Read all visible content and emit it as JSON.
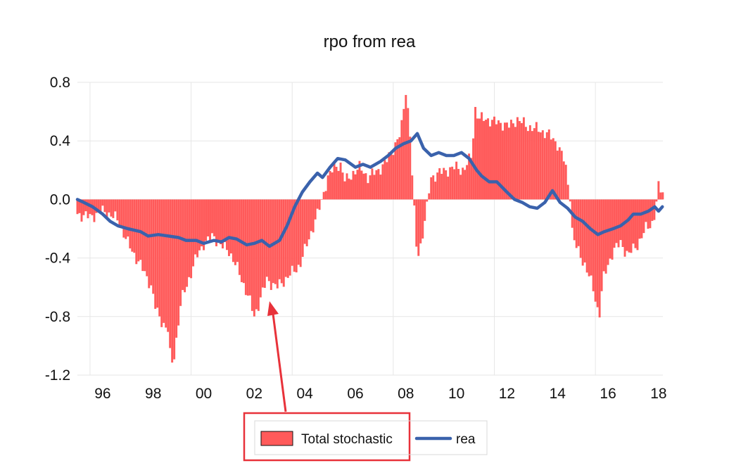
{
  "chart_data": {
    "type": "bar",
    "title": "rpo from rea",
    "xlabel": "",
    "ylabel": "",
    "ylim": [
      -1.2,
      0.8
    ],
    "yticks": [
      "0.8",
      "0.4",
      "0.0",
      "-0.4",
      "-0.8",
      "-1.2"
    ],
    "ytick_values": [
      0.8,
      0.4,
      0.0,
      -0.4,
      -0.8,
      -1.2
    ],
    "x_range": [
      1995.0,
      2018.17
    ],
    "xticks": [
      "96",
      "98",
      "00",
      "02",
      "04",
      "06",
      "08",
      "10",
      "12",
      "14",
      "16",
      "18"
    ],
    "xtick_values": [
      1996,
      1998,
      2000,
      2002,
      2004,
      2006,
      2008,
      2010,
      2012,
      2014,
      2016,
      2018
    ],
    "x_gridlines": [
      1995.5,
      1999.5,
      2003.5,
      2007.5,
      2011.5,
      2015.5
    ],
    "grid": true,
    "legend_position": "bottom",
    "series": [
      {
        "name": "Total stochastic",
        "kind": "bar",
        "color": "#ff5a5a",
        "x": [
          1995.0,
          1995.5,
          1996.0,
          1996.25,
          1996.6,
          1997.0,
          1997.5,
          1997.9,
          1998.1,
          1998.4,
          1998.6,
          1998.7,
          1998.85,
          1999.1,
          1999.4,
          1999.7,
          2000.0,
          2000.4,
          2000.7,
          2001.0,
          2001.4,
          2001.8,
          2002.0,
          2002.2,
          2002.5,
          2002.9,
          2003.2,
          2003.5,
          2003.8,
          2004.0,
          2004.3,
          2004.6,
          2004.9,
          2005.1,
          2005.4,
          2005.6,
          2005.9,
          2006.2,
          2006.5,
          2006.9,
          2007.2,
          2007.5,
          2007.8,
          2008.0,
          2008.15,
          2008.3,
          2008.45,
          2008.6,
          2008.8,
          2009.0,
          2009.3,
          2009.6,
          2010.0,
          2010.3,
          2010.6,
          2010.75,
          2010.9,
          2011.2,
          2011.5,
          2011.8,
          2012.1,
          2012.4,
          2012.8,
          2013.2,
          2013.6,
          2014.0,
          2014.3,
          2014.5,
          2014.6,
          2014.8,
          2015.1,
          2015.4,
          2015.65,
          2015.8,
          2016.0,
          2016.2,
          2016.5,
          2016.8,
          2017.2,
          2017.5,
          2017.8,
          2018.0,
          2018.15
        ],
        "values": [
          -0.1,
          -0.12,
          -0.08,
          -0.1,
          -0.14,
          -0.3,
          -0.45,
          -0.58,
          -0.75,
          -0.85,
          -0.9,
          -1.14,
          -1.05,
          -0.7,
          -0.55,
          -0.4,
          -0.3,
          -0.25,
          -0.32,
          -0.35,
          -0.5,
          -0.68,
          -0.8,
          -0.7,
          -0.55,
          -0.6,
          -0.55,
          -0.5,
          -0.45,
          -0.35,
          -0.2,
          -0.05,
          0.15,
          0.2,
          0.25,
          0.12,
          0.18,
          0.22,
          0.15,
          0.2,
          0.25,
          0.35,
          0.45,
          0.75,
          0.5,
          0.0,
          -0.4,
          -0.3,
          -0.1,
          0.15,
          0.18,
          0.2,
          0.22,
          0.2,
          0.3,
          0.62,
          0.55,
          0.55,
          0.53,
          0.52,
          0.5,
          0.55,
          0.5,
          0.48,
          0.45,
          0.38,
          0.25,
          0.0,
          -0.25,
          -0.35,
          -0.45,
          -0.6,
          -0.8,
          -0.55,
          -0.45,
          -0.35,
          -0.3,
          -0.38,
          -0.3,
          -0.2,
          -0.15,
          0.08,
          0.05
        ]
      },
      {
        "name": "rea",
        "kind": "line",
        "color": "#3a62ac",
        "x": [
          1995.0,
          1995.25,
          1995.6,
          1996.0,
          1996.3,
          1996.6,
          1997.0,
          1997.5,
          1997.8,
          1998.2,
          1998.6,
          1999.0,
          1999.3,
          1999.7,
          2000.0,
          2000.4,
          2000.7,
          2001.0,
          2001.3,
          2001.7,
          2002.0,
          2002.3,
          2002.6,
          2003.0,
          2003.3,
          2003.6,
          2003.9,
          2004.2,
          2004.5,
          2004.7,
          2005.0,
          2005.3,
          2005.6,
          2006.0,
          2006.3,
          2006.6,
          2007.0,
          2007.3,
          2007.6,
          2007.9,
          2008.2,
          2008.45,
          2008.7,
          2009.0,
          2009.3,
          2009.6,
          2009.9,
          2010.2,
          2010.5,
          2010.8,
          2011.0,
          2011.3,
          2011.6,
          2012.0,
          2012.3,
          2012.6,
          2012.9,
          2013.2,
          2013.5,
          2013.8,
          2014.1,
          2014.4,
          2014.7,
          2015.0,
          2015.3,
          2015.6,
          2015.85,
          2016.2,
          2016.5,
          2016.8,
          2017.0,
          2017.3,
          2017.6,
          2017.85,
          2018.0,
          2018.15
        ],
        "values": [
          0.0,
          -0.02,
          -0.05,
          -0.1,
          -0.15,
          -0.18,
          -0.2,
          -0.22,
          -0.25,
          -0.24,
          -0.25,
          -0.26,
          -0.28,
          -0.28,
          -0.3,
          -0.28,
          -0.29,
          -0.26,
          -0.27,
          -0.31,
          -0.3,
          -0.28,
          -0.32,
          -0.28,
          -0.18,
          -0.05,
          0.05,
          0.12,
          0.18,
          0.15,
          0.22,
          0.28,
          0.27,
          0.22,
          0.24,
          0.22,
          0.26,
          0.3,
          0.35,
          0.38,
          0.4,
          0.45,
          0.35,
          0.3,
          0.32,
          0.3,
          0.3,
          0.32,
          0.28,
          0.2,
          0.16,
          0.12,
          0.12,
          0.05,
          0.0,
          -0.02,
          -0.05,
          -0.06,
          -0.02,
          0.06,
          -0.02,
          -0.06,
          -0.12,
          -0.15,
          -0.2,
          -0.24,
          -0.22,
          -0.2,
          -0.18,
          -0.14,
          -0.1,
          -0.1,
          -0.08,
          -0.05,
          -0.08,
          -0.05
        ]
      }
    ]
  }
}
